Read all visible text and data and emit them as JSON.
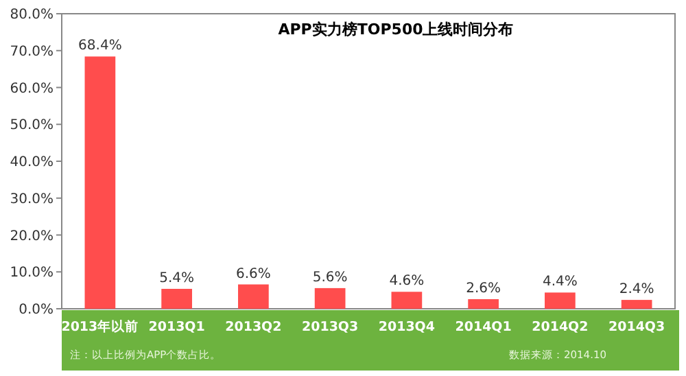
{
  "chart_data": {
    "type": "bar",
    "title": "APP实力榜TOP500上线时间分布",
    "categories": [
      "2013年以前",
      "2013Q1",
      "2013Q2",
      "2013Q3",
      "2013Q4",
      "2014Q1",
      "2014Q2",
      "2014Q3"
    ],
    "values": [
      68.4,
      5.4,
      6.6,
      5.6,
      4.6,
      2.6,
      4.4,
      2.4
    ],
    "value_labels": [
      "68.4%",
      "5.4%",
      "6.6%",
      "5.6%",
      "4.6%",
      "2.6%",
      "4.4%",
      "2.4%"
    ],
    "color": "#ff4d4d",
    "ylim": [
      0,
      80
    ],
    "yticks": [
      {
        "value": 0,
        "label": "0.0%"
      },
      {
        "value": 10,
        "label": "10.0%"
      },
      {
        "value": 20,
        "label": "20.0%"
      },
      {
        "value": 30,
        "label": "30.0%"
      },
      {
        "value": 40,
        "label": "40.0%"
      },
      {
        "value": 50,
        "label": "50.0%"
      },
      {
        "value": 60,
        "label": "60.0%"
      },
      {
        "value": 70,
        "label": "70.0%"
      },
      {
        "value": 80,
        "label": "80.0%"
      }
    ],
    "grid": false,
    "annotations": [
      "注：以上比例为APP个数占比。",
      "数据来源：2014.10"
    ]
  }
}
